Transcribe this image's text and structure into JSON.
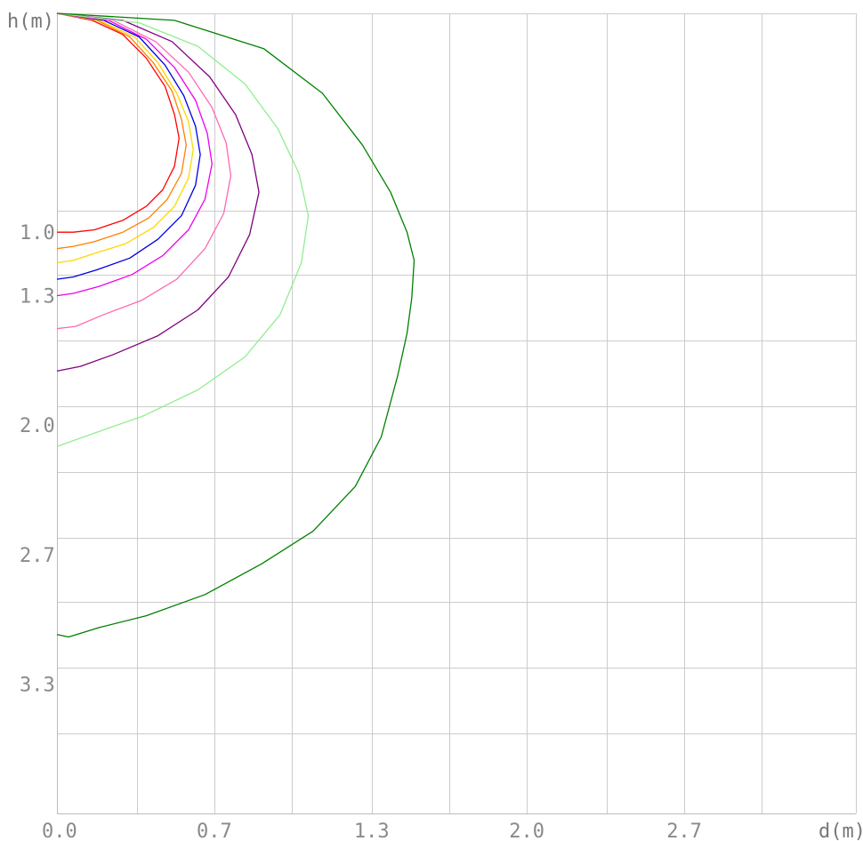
{
  "chart_data": {
    "type": "line",
    "xlabel": "d(m)",
    "ylabel": "h(m)",
    "xlim": [
      0,
      3.4
    ],
    "ylim": [
      0,
      3.4
    ],
    "y_inverted": true,
    "grid": true,
    "x_gridlines": [
      0.34,
      0.67,
      1.0,
      1.34,
      1.67,
      2.0,
      2.34,
      2.67,
      3.0
    ],
    "y_gridlines": [
      0.84,
      1.11,
      1.39,
      1.67,
      1.95,
      2.23,
      2.5,
      2.78,
      3.06
    ],
    "x_ticks": [
      {
        "value": 0.0,
        "label": "0.0"
      },
      {
        "value": 0.67,
        "label": "0.7"
      },
      {
        "value": 1.34,
        "label": "1.3"
      },
      {
        "value": 2.0,
        "label": "2.0"
      },
      {
        "value": 2.67,
        "label": "2.7"
      }
    ],
    "y_ticks": [
      {
        "value": 0.93,
        "label": "1.0"
      },
      {
        "value": 1.2,
        "label": "1.3"
      },
      {
        "value": 1.75,
        "label": "2.0"
      },
      {
        "value": 2.3,
        "label": "2.7"
      },
      {
        "value": 2.85,
        "label": "3.3"
      }
    ],
    "series": [
      {
        "color": "#ff0000",
        "points": [
          [
            0,
            0
          ],
          [
            0.15,
            0.03
          ],
          [
            0.28,
            0.09
          ],
          [
            0.38,
            0.19
          ],
          [
            0.46,
            0.31
          ],
          [
            0.5,
            0.43
          ],
          [
            0.52,
            0.53
          ],
          [
            0.5,
            0.65
          ],
          [
            0.45,
            0.75
          ],
          [
            0.38,
            0.82
          ],
          [
            0.28,
            0.88
          ],
          [
            0.16,
            0.92
          ],
          [
            0.07,
            0.93
          ],
          [
            0,
            0.93
          ]
        ]
      },
      {
        "color": "#ff8000",
        "points": [
          [
            0,
            0
          ],
          [
            0.17,
            0.03
          ],
          [
            0.31,
            0.1
          ],
          [
            0.41,
            0.21
          ],
          [
            0.49,
            0.33
          ],
          [
            0.53,
            0.45
          ],
          [
            0.55,
            0.56
          ],
          [
            0.53,
            0.68
          ],
          [
            0.47,
            0.79
          ],
          [
            0.39,
            0.87
          ],
          [
            0.28,
            0.93
          ],
          [
            0.16,
            0.97
          ],
          [
            0.07,
            0.99
          ],
          [
            0,
            1.0
          ]
        ]
      },
      {
        "color": "#ffd700",
        "points": [
          [
            0,
            0
          ],
          [
            0.18,
            0.03
          ],
          [
            0.33,
            0.1
          ],
          [
            0.43,
            0.21
          ],
          [
            0.51,
            0.34
          ],
          [
            0.56,
            0.46
          ],
          [
            0.58,
            0.58
          ],
          [
            0.56,
            0.7
          ],
          [
            0.5,
            0.82
          ],
          [
            0.41,
            0.91
          ],
          [
            0.29,
            0.98
          ],
          [
            0.16,
            1.02
          ],
          [
            0.07,
            1.05
          ],
          [
            0,
            1.06
          ]
        ]
      },
      {
        "color": "#0000e0",
        "points": [
          [
            0,
            0
          ],
          [
            0.2,
            0.03
          ],
          [
            0.35,
            0.1
          ],
          [
            0.46,
            0.22
          ],
          [
            0.54,
            0.35
          ],
          [
            0.59,
            0.48
          ],
          [
            0.61,
            0.6
          ],
          [
            0.59,
            0.73
          ],
          [
            0.53,
            0.86
          ],
          [
            0.43,
            0.96
          ],
          [
            0.31,
            1.04
          ],
          [
            0.17,
            1.09
          ],
          [
            0.07,
            1.12
          ],
          [
            0,
            1.13
          ]
        ]
      },
      {
        "color": "#ee00ee",
        "points": [
          [
            0,
            0
          ],
          [
            0.22,
            0.03
          ],
          [
            0.38,
            0.11
          ],
          [
            0.5,
            0.23
          ],
          [
            0.59,
            0.37
          ],
          [
            0.64,
            0.51
          ],
          [
            0.66,
            0.64
          ],
          [
            0.63,
            0.79
          ],
          [
            0.56,
            0.92
          ],
          [
            0.45,
            1.03
          ],
          [
            0.32,
            1.11
          ],
          [
            0.18,
            1.16
          ],
          [
            0.07,
            1.19
          ],
          [
            0,
            1.2
          ]
        ]
      },
      {
        "color": "#ff69b4",
        "points": [
          [
            0,
            0
          ],
          [
            0.24,
            0.03
          ],
          [
            0.42,
            0.12
          ],
          [
            0.56,
            0.25
          ],
          [
            0.66,
            0.4
          ],
          [
            0.72,
            0.55
          ],
          [
            0.74,
            0.69
          ],
          [
            0.71,
            0.85
          ],
          [
            0.63,
            1.0
          ],
          [
            0.51,
            1.13
          ],
          [
            0.36,
            1.22
          ],
          [
            0.2,
            1.28
          ],
          [
            0.08,
            1.33
          ],
          [
            0,
            1.34
          ]
        ]
      },
      {
        "color": "#800080",
        "points": [
          [
            0,
            0
          ],
          [
            0.28,
            0.03
          ],
          [
            0.49,
            0.12
          ],
          [
            0.65,
            0.27
          ],
          [
            0.76,
            0.43
          ],
          [
            0.83,
            0.6
          ],
          [
            0.86,
            0.76
          ],
          [
            0.82,
            0.94
          ],
          [
            0.73,
            1.12
          ],
          [
            0.6,
            1.26
          ],
          [
            0.43,
            1.37
          ],
          [
            0.24,
            1.45
          ],
          [
            0.1,
            1.5
          ],
          [
            0,
            1.52
          ]
        ]
      },
      {
        "color": "#90ee90",
        "points": [
          [
            0,
            0
          ],
          [
            0.35,
            0.04
          ],
          [
            0.6,
            0.14
          ],
          [
            0.8,
            0.3
          ],
          [
            0.94,
            0.49
          ],
          [
            1.03,
            0.68
          ],
          [
            1.07,
            0.86
          ],
          [
            1.04,
            1.06
          ],
          [
            0.95,
            1.28
          ],
          [
            0.8,
            1.46
          ],
          [
            0.6,
            1.6
          ],
          [
            0.37,
            1.71
          ],
          [
            0.17,
            1.78
          ],
          [
            0.03,
            1.83
          ],
          [
            0,
            1.84
          ]
        ]
      },
      {
        "color": "#008000",
        "points": [
          [
            0,
            0
          ],
          [
            0.5,
            0.03
          ],
          [
            0.88,
            0.15
          ],
          [
            1.13,
            0.34
          ],
          [
            1.3,
            0.56
          ],
          [
            1.42,
            0.76
          ],
          [
            1.49,
            0.93
          ],
          [
            1.52,
            1.05
          ],
          [
            1.51,
            1.21
          ],
          [
            1.49,
            1.36
          ],
          [
            1.45,
            1.54
          ],
          [
            1.38,
            1.8
          ],
          [
            1.27,
            2.01
          ],
          [
            1.09,
            2.2
          ],
          [
            0.87,
            2.34
          ],
          [
            0.63,
            2.47
          ],
          [
            0.38,
            2.56
          ],
          [
            0.18,
            2.61
          ],
          [
            0.05,
            2.65
          ],
          [
            0,
            2.64
          ]
        ]
      }
    ]
  }
}
